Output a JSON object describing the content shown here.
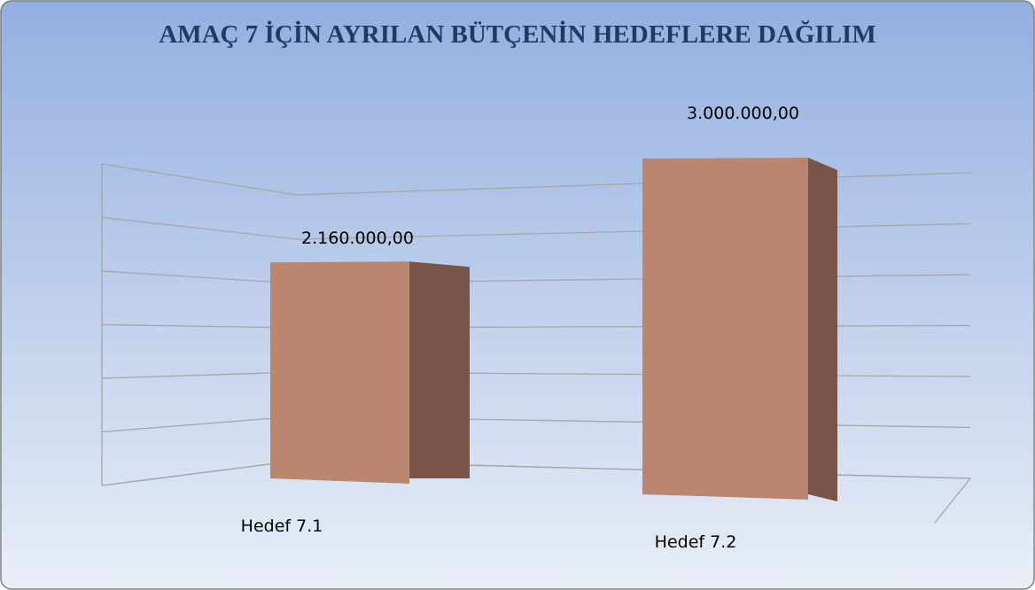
{
  "chart_data": {
    "type": "bar3d",
    "title": "AMAÇ 7 İÇİN AYRILAN BÜTÇENİN  HEDEFLERE DAĞILIM",
    "categories": [
      "Hedef 7.1",
      "Hedef 7.2"
    ],
    "values": [
      2160000,
      3000000
    ],
    "value_labels": [
      "2.160.000,00",
      "3.000.000,00"
    ],
    "color": "#bb8670",
    "side_color": "#7a5547",
    "ylim": [
      0,
      3000000
    ],
    "yticks": [
      0,
      500000,
      1000000,
      1500000,
      2000000,
      2500000,
      3000000
    ],
    "grid": true
  }
}
